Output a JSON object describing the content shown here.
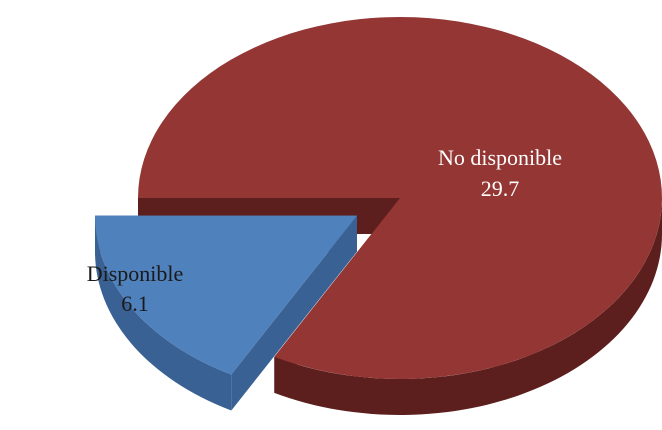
{
  "chart_data": {
    "type": "pie",
    "style": "3d-exploded",
    "slices": [
      {
        "label": "No disponible",
        "value": 29.7,
        "value_text": "29.7",
        "color": "#943634",
        "side_color": "#5c1f1d"
      },
      {
        "label": "Disponible",
        "value": 6.1,
        "value_text": "6.1",
        "color": "#4f81bd",
        "side_color": "#3a6193"
      }
    ],
    "legend": "none"
  }
}
